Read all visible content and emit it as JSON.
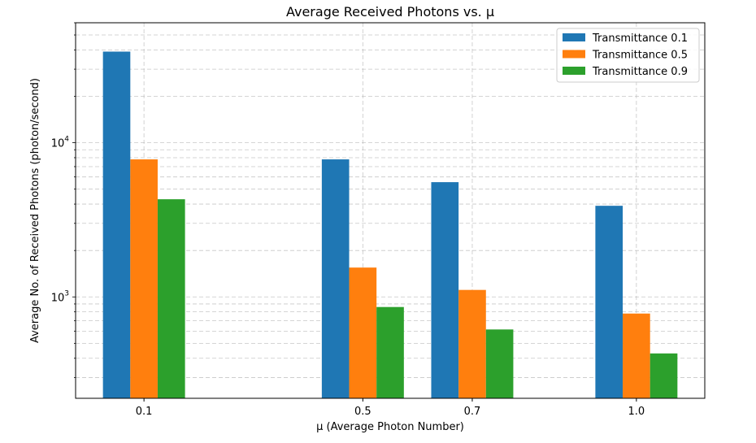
{
  "chart_data": {
    "type": "bar",
    "title": "Average Received Photons vs. μ",
    "xlabel": "μ (Average Photon Number)",
    "ylabel": "Average No. of Received Photons (photon/second)",
    "x": [
      0.1,
      0.5,
      0.7,
      1.0
    ],
    "x_tick_labels": [
      "0.1",
      "0.5",
      "0.7",
      "1.0"
    ],
    "y_scale": "log",
    "ylim": [
      220,
      60000
    ],
    "xlim": [
      -0.025,
      1.125
    ],
    "y_tick_labels": [
      {
        "value": 1000,
        "base": "10",
        "exp": "3"
      },
      {
        "value": 10000,
        "base": "10",
        "exp": "4"
      }
    ],
    "grid": true,
    "legend_position": "top-right",
    "series": [
      {
        "name": "Transmittance 0.1",
        "color": "#1f77b4",
        "values": [
          39000,
          7800,
          5550,
          3900
        ]
      },
      {
        "name": "Transmittance 0.5",
        "color": "#ff7f0e",
        "values": [
          7800,
          1550,
          1110,
          780
        ]
      },
      {
        "name": "Transmittance 0.9",
        "color": "#2ca02c",
        "values": [
          4300,
          860,
          615,
          430
        ]
      }
    ]
  }
}
